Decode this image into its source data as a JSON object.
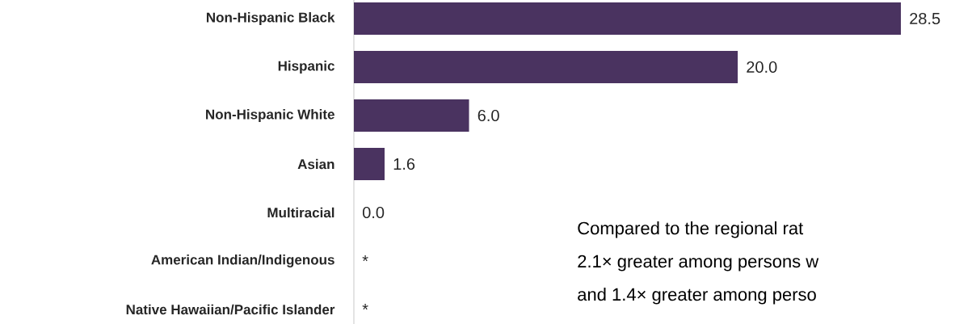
{
  "chart_data": {
    "type": "bar",
    "orientation": "horizontal",
    "categories": [
      "Non-Hispanic Black",
      "Hispanic",
      "Non-Hispanic White",
      "Asian",
      "Multiracial",
      "American Indian/Indigenous",
      "Native Hawaiian/Pacific Islander"
    ],
    "values": [
      28.5,
      20.0,
      6.0,
      1.6,
      0.0,
      null,
      null
    ],
    "value_labels": [
      "28.5",
      "20.0",
      "6.0",
      "1.6",
      "0.0",
      "*",
      "*"
    ],
    "color": "#4a3360",
    "tick_labels": "y",
    "annotations": [
      "Compared to the regional rat",
      "2.1× greater among persons w",
      "and 1.4× greater among perso"
    ]
  }
}
